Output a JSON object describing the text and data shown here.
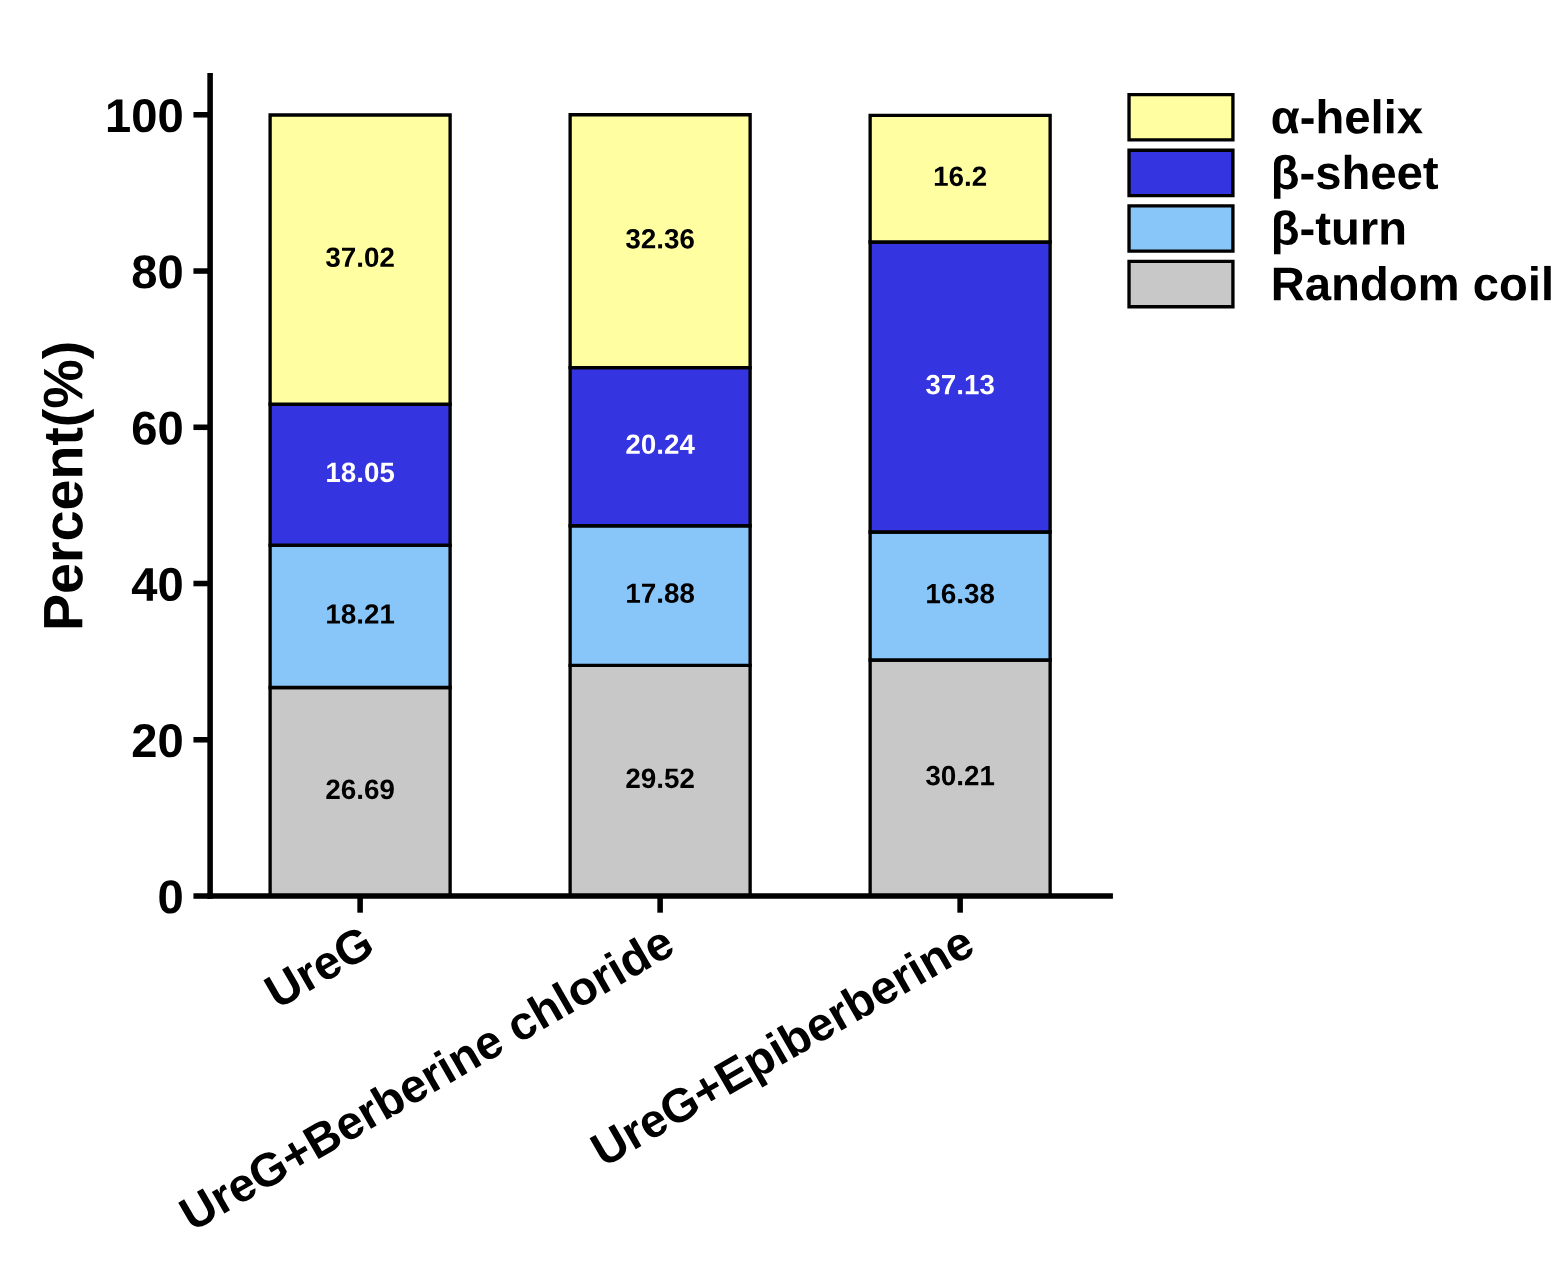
{
  "chart_data": {
    "type": "bar",
    "stacked": true,
    "ylabel": "Percent(%)",
    "categories": [
      "UreG",
      "UreG+Berberine chloride",
      "UreG+Epiberberine"
    ],
    "series": [
      {
        "name": "Random coil",
        "color": "#c8c8c8",
        "values": [
          26.69,
          29.52,
          30.21
        ]
      },
      {
        "name": "β-turn",
        "color": "#88c6fa",
        "values": [
          18.21,
          17.88,
          16.38
        ]
      },
      {
        "name": "β-sheet",
        "color": "#3434e0",
        "values": [
          18.05,
          20.24,
          37.13
        ]
      },
      {
        "name": "α-helix",
        "color": "#ffffa2",
        "values": [
          37.02,
          32.36,
          16.2
        ]
      }
    ],
    "ylim": [
      0,
      105
    ],
    "yticks": [
      0,
      20,
      40,
      60,
      80,
      100
    ],
    "data_labels": true,
    "legend": "top right",
    "grid": false
  }
}
